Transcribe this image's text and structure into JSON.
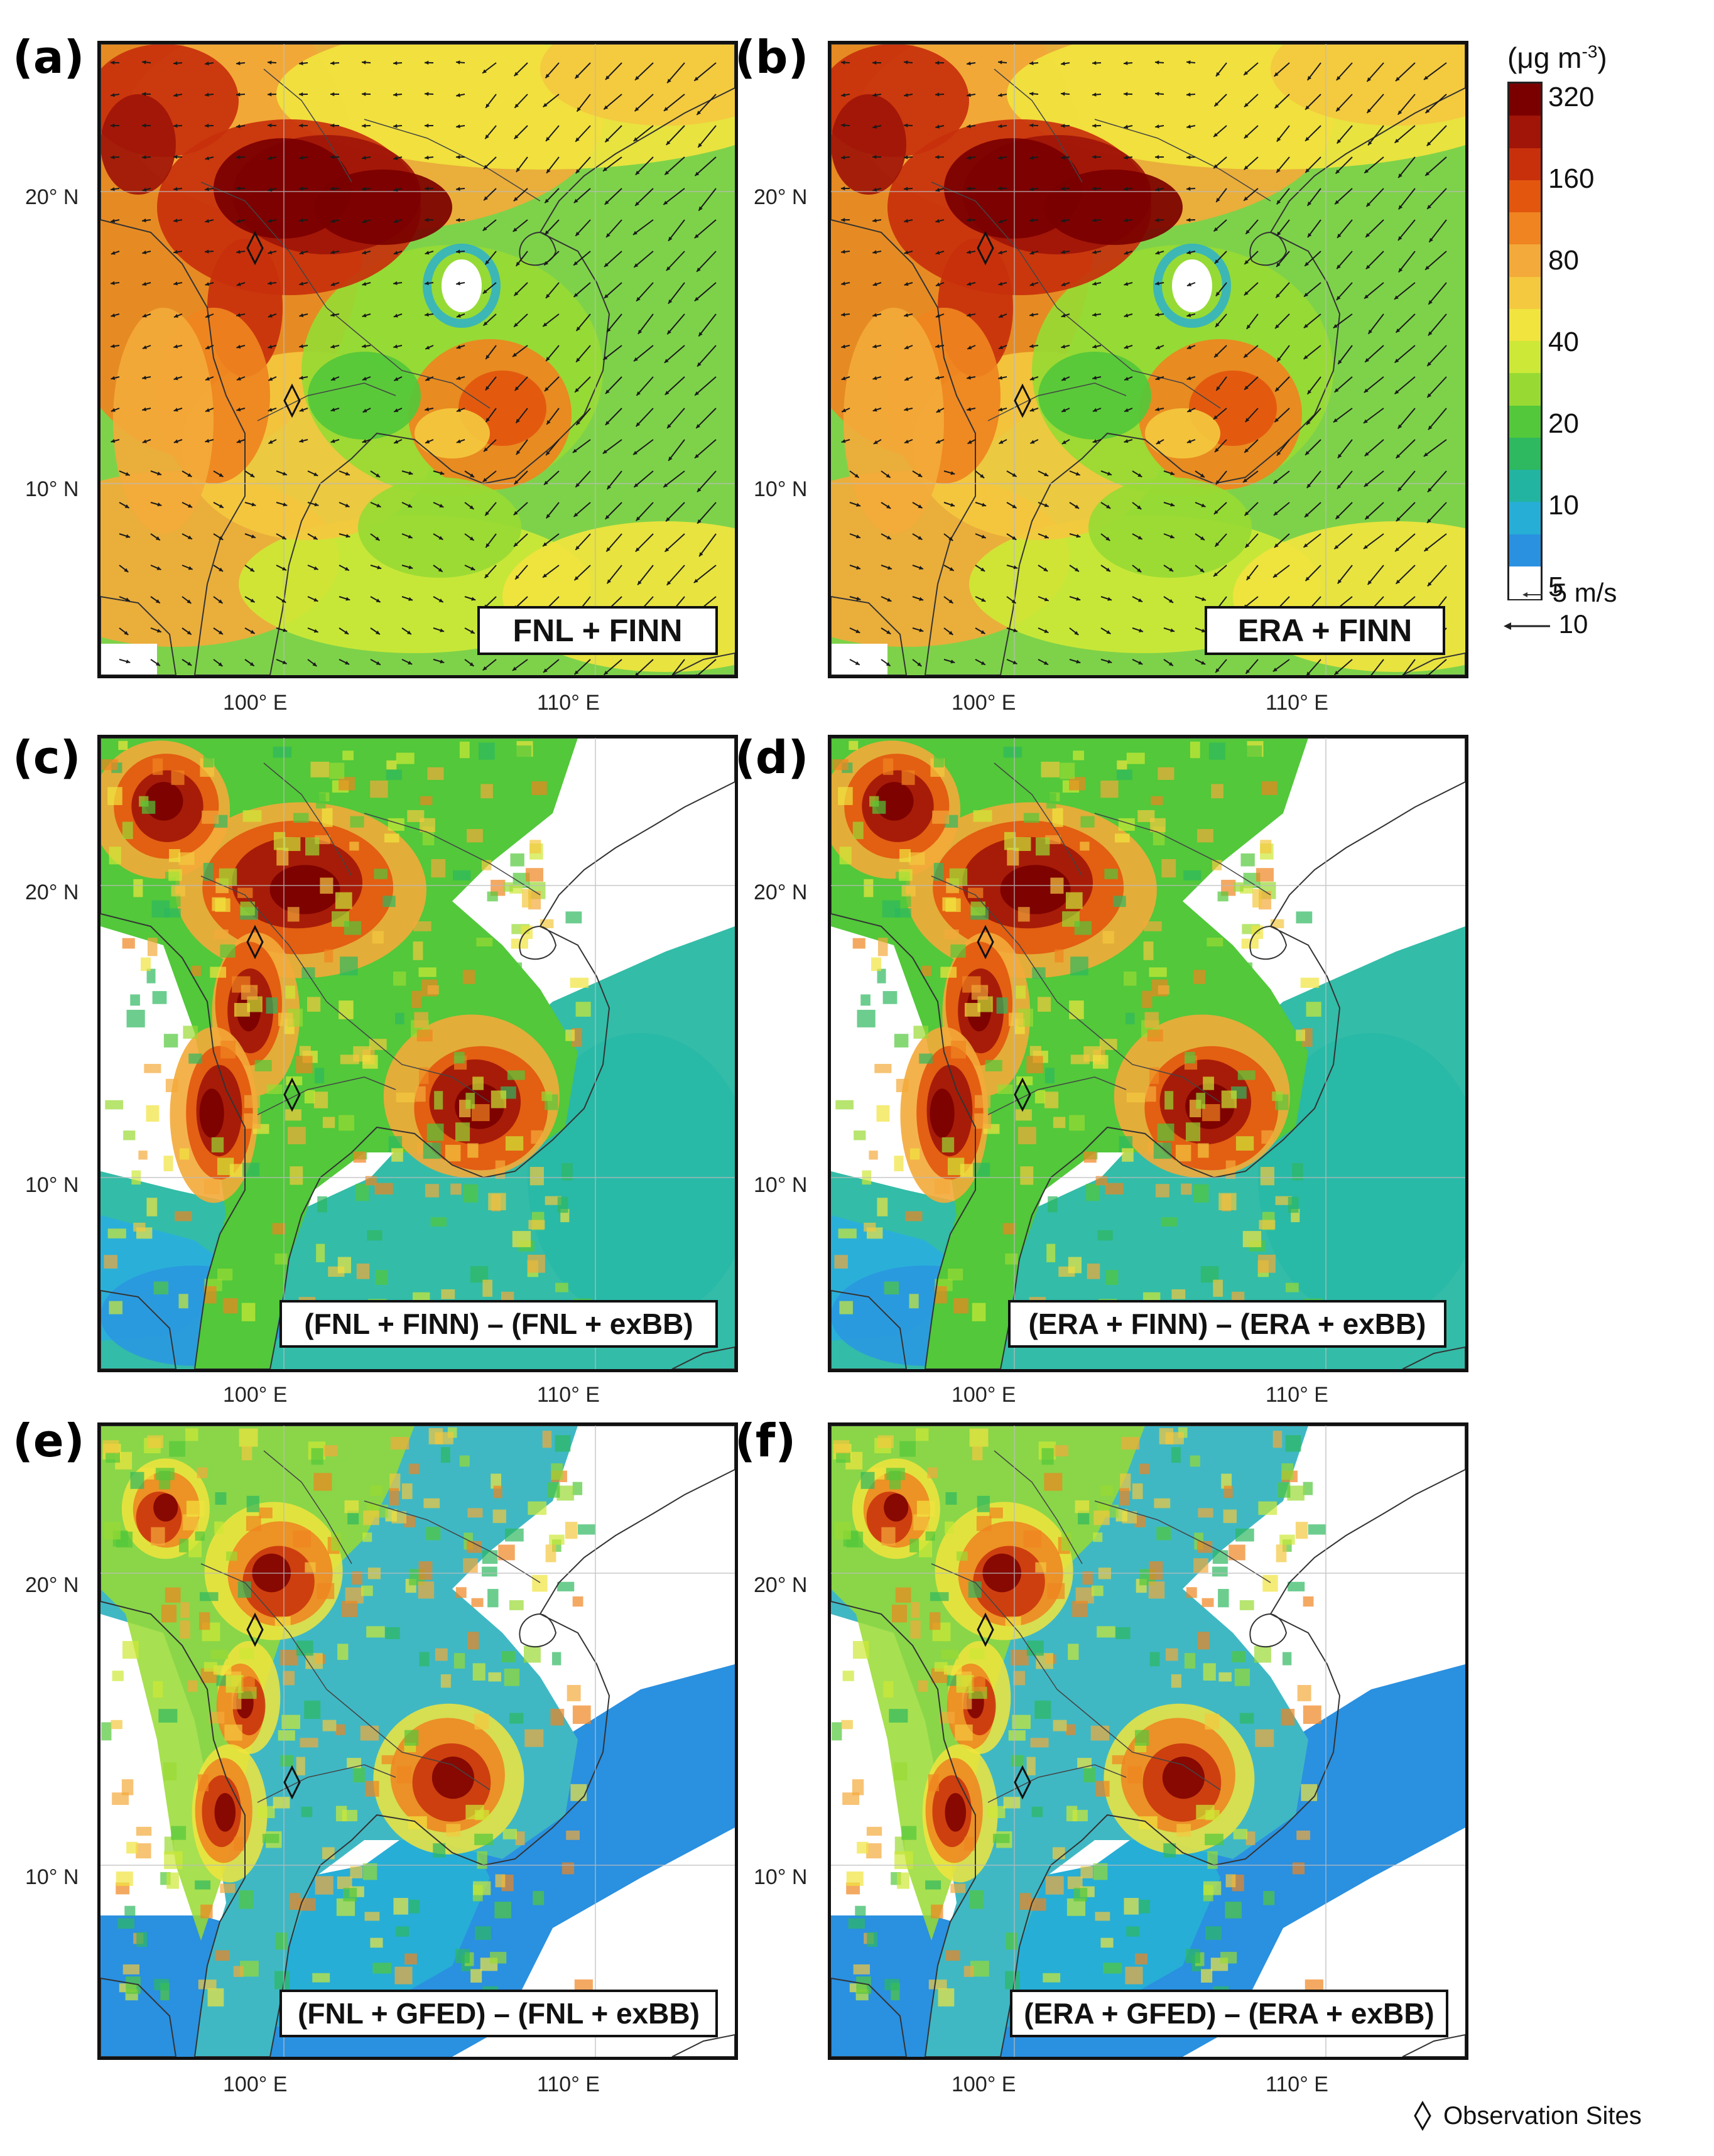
{
  "panels": [
    {
      "letter": "(a)",
      "scenario": "FNL + FINN",
      "type": "concentration",
      "winds": true,
      "met": "fnl"
    },
    {
      "letter": "(b)",
      "scenario": "ERA + FINN",
      "type": "concentration",
      "winds": true,
      "met": "era"
    },
    {
      "letter": "(c)",
      "scenario": "(FNL + FINN) – (FNL + exBB)",
      "type": "difference-finn",
      "winds": false,
      "met": "fnl"
    },
    {
      "letter": "(d)",
      "scenario": "(ERA + FINN) – (ERA + exBB)",
      "type": "difference-finn",
      "winds": false,
      "met": "era"
    },
    {
      "letter": "(e)",
      "scenario": "(FNL + GFED) – (FNL + exBB)",
      "type": "difference-gfed",
      "winds": false,
      "met": "fnl"
    },
    {
      "letter": "(f)",
      "scenario": "(ERA + GFED) – (ERA + exBB)",
      "type": "difference-gfed",
      "winds": false,
      "met": "era"
    }
  ],
  "axes": {
    "lat_labels": [
      "20° N",
      "10° N"
    ],
    "lon_labels": [
      "100° E",
      "110° E"
    ]
  },
  "colorbar": {
    "unit_base": "(μg m",
    "unit_exp": "-3",
    "unit_close": ")",
    "ticks": [
      "320",
      "160",
      "80",
      "40",
      "20",
      "10",
      "5"
    ],
    "colors": [
      "#7a0000",
      "#a01508",
      "#c8300c",
      "#e2560e",
      "#ef8420",
      "#f3aa3a",
      "#f4c83f",
      "#f1e43e",
      "#cde836",
      "#98da33",
      "#52c83a",
      "#2eb860",
      "#22b4a0",
      "#26aed6",
      "#2a90e0",
      "#ffffff"
    ]
  },
  "wind_reference": [
    {
      "label": "5 m/s"
    },
    {
      "label": "10"
    }
  ],
  "observation_sites_label": "Observation Sites"
}
